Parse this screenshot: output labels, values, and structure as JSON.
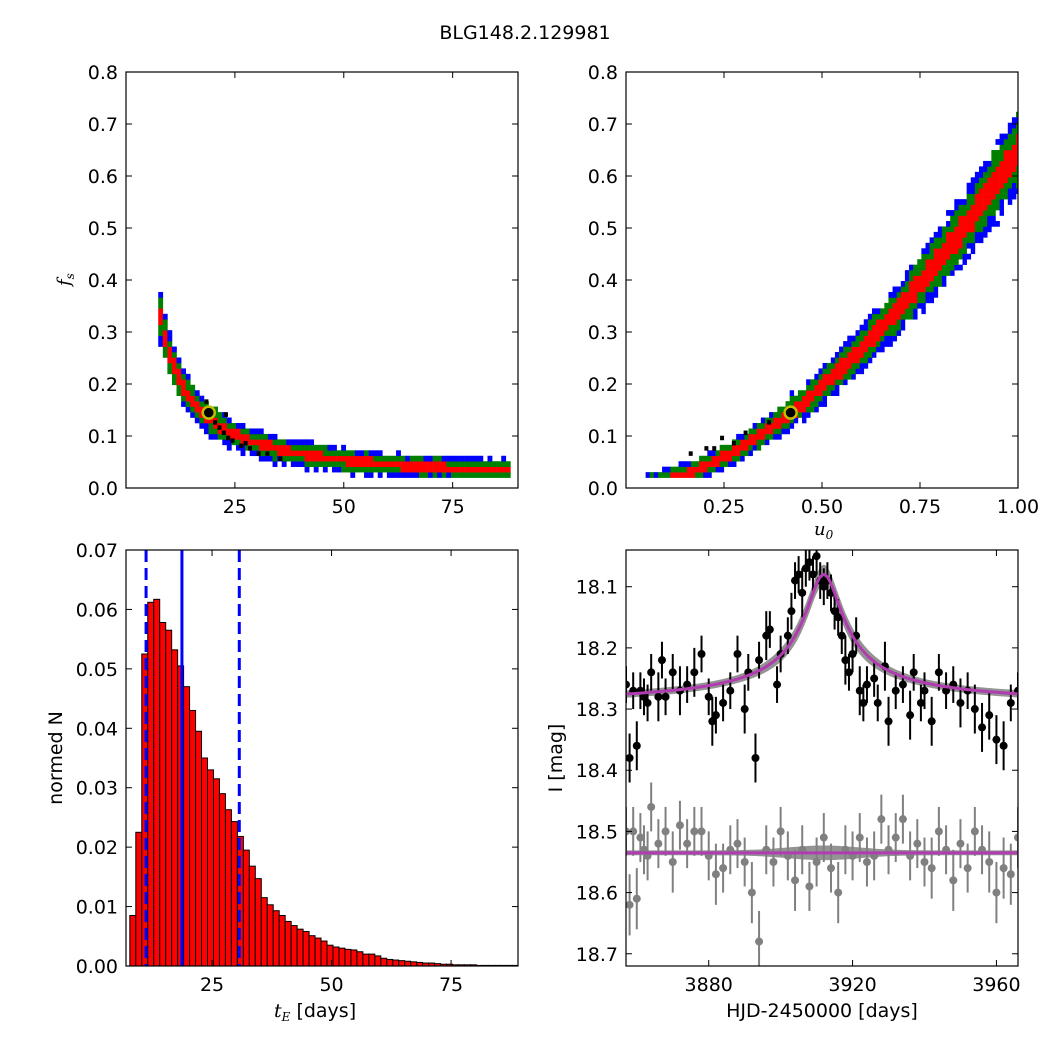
{
  "title": "BLG148.2.129981",
  "colors": {
    "blue": "#0000ff",
    "green": "#008000",
    "red": "#ff0000",
    "black": "#000000",
    "marker_edge": "#bfbf00",
    "gray": "#808080",
    "model": "#b03cb0"
  },
  "chart_data": [
    {
      "type": "heatmap",
      "panel": "top-left",
      "xlim": [
        0,
        90
      ],
      "ylim": [
        0,
        0.8
      ],
      "xticks": [
        25,
        50,
        75
      ],
      "yticks": [
        0.0,
        0.1,
        0.2,
        0.3,
        0.4,
        0.5,
        0.6,
        0.7,
        0.8
      ],
      "xlabel": "",
      "ylabel": "f_s",
      "ylabel_base": "f",
      "ylabel_sub": "s",
      "confidence_levels": [
        "black",
        "red",
        "green",
        "blue"
      ],
      "relation": "f_s ≈ 2.4 / t_E  (t_E from ~7.5 to ~87 days)",
      "best_fit": {
        "x": 19,
        "y": 0.145
      }
    },
    {
      "type": "heatmap",
      "panel": "top-right",
      "xlim": [
        0,
        1.0
      ],
      "ylim": [
        0,
        0.8
      ],
      "xticks": [
        0.25,
        0.5,
        0.75,
        1.0
      ],
      "xtick_labels": [
        "0.25",
        "0.50",
        "0.75",
        "1.00"
      ],
      "yticks": [
        0.0,
        0.1,
        0.2,
        0.3,
        0.4,
        0.5,
        0.6,
        0.7,
        0.8
      ],
      "xlabel": "u_0",
      "xlabel_base": "u",
      "xlabel_sub": "0",
      "ylabel": "",
      "relation": "f_s ≈ 0.65 · u_0^1.75  (u_0 from ~0.05 to 1.0)",
      "best_fit": {
        "x": 0.42,
        "y": 0.145
      }
    },
    {
      "type": "bar",
      "panel": "bottom-left",
      "xlim": [
        7,
        89
      ],
      "ylim": [
        0,
        0.07
      ],
      "xticks": [
        25,
        50,
        75
      ],
      "yticks": [
        0.0,
        0.01,
        0.02,
        0.03,
        0.04,
        0.05,
        0.06,
        0.07
      ],
      "ytick_labels": [
        "0.00",
        "0.01",
        "0.02",
        "0.03",
        "0.04",
        "0.05",
        "0.06",
        "0.07"
      ],
      "xlabel_base": "t",
      "xlabel_sub": "E",
      "xlabel_suffix": " [days]",
      "ylabel": "normed N",
      "bin_start": 7.8,
      "bin_width": 1.25,
      "values": [
        0.0085,
        0.0225,
        0.0525,
        0.0612,
        0.0617,
        0.0578,
        0.0565,
        0.0532,
        0.0505,
        0.047,
        0.043,
        0.0395,
        0.035,
        0.033,
        0.0315,
        0.029,
        0.0263,
        0.0243,
        0.0218,
        0.0195,
        0.0168,
        0.0147,
        0.0115,
        0.0103,
        0.0093,
        0.0085,
        0.0075,
        0.0068,
        0.0062,
        0.0058,
        0.0051,
        0.0047,
        0.0042,
        0.0035,
        0.0032,
        0.003,
        0.0028,
        0.0027,
        0.0024,
        0.002,
        0.002,
        0.0017,
        0.0013,
        0.0011,
        0.001,
        0.0009,
        0.0008,
        0.0007,
        0.0006,
        0.0005,
        0.0005,
        0.0004,
        0.0003,
        0.0003,
        0.0002,
        0.0002,
        0.0002,
        0.0002,
        0.0001,
        0.0001,
        0.0001,
        0.0001,
        0.0001,
        0.0001,
        0.0001
      ],
      "median": 18.7,
      "lower": 11.2,
      "upper": 30.7
    },
    {
      "type": "scatter",
      "panel": "bottom-right",
      "xlim": [
        3857,
        3966
      ],
      "ylim": [
        18.72,
        18.04
      ],
      "xticks": [
        3880,
        3920,
        3960
      ],
      "yticks": [
        18.1,
        18.2,
        18.3,
        18.4,
        18.5,
        18.6,
        18.7
      ],
      "xlabel": "HJD-2450000 [days]",
      "ylabel": "I [mag]",
      "series": [
        {
          "color": "black",
          "baseline": 18.295,
          "peak": 18.08,
          "t0": 3912,
          "x": [
            3857,
            3858,
            3859,
            3860,
            3861,
            3862,
            3863,
            3864,
            3866,
            3867,
            3868,
            3870,
            3872,
            3874,
            3876,
            3878,
            3880,
            3881,
            3882,
            3884,
            3886,
            3888,
            3890,
            3891,
            3893,
            3894,
            3896,
            3897,
            3899,
            3900,
            3902,
            3903,
            3904,
            3905,
            3906,
            3907,
            3908,
            3909,
            3910,
            3911,
            3912,
            3913,
            3914,
            3915,
            3916,
            3917,
            3918,
            3919,
            3920,
            3921,
            3922,
            3923,
            3924,
            3926,
            3927,
            3929,
            3930,
            3932,
            3934,
            3936,
            3937,
            3939,
            3940,
            3942,
            3944,
            3946,
            3948,
            3950,
            3952,
            3954,
            3956,
            3958,
            3960,
            3962,
            3964,
            3966
          ],
          "y": [
            18.26,
            18.38,
            18.27,
            18.36,
            18.27,
            18.28,
            18.29,
            18.24,
            18.28,
            18.22,
            18.28,
            18.24,
            18.27,
            18.26,
            18.24,
            18.21,
            18.28,
            18.32,
            18.31,
            18.29,
            18.27,
            18.21,
            18.3,
            18.24,
            18.38,
            18.22,
            18.18,
            18.17,
            18.26,
            18.21,
            18.18,
            18.14,
            18.09,
            18.08,
            18.11,
            18.07,
            18.06,
            18.08,
            18.05,
            18.09,
            18.1,
            18.09,
            18.11,
            18.14,
            18.15,
            18.18,
            18.22,
            18.24,
            18.21,
            18.18,
            18.27,
            18.29,
            18.26,
            18.25,
            18.29,
            18.23,
            18.32,
            18.27,
            18.26,
            18.31,
            18.24,
            18.29,
            18.27,
            18.32,
            18.24,
            18.27,
            18.26,
            18.29,
            18.27,
            18.3,
            18.33,
            18.31,
            18.35,
            18.36,
            18.29,
            18.27
          ],
          "err": [
            0.03,
            0.04,
            0.03,
            0.04,
            0.03,
            0.03,
            0.03,
            0.03,
            0.04,
            0.03,
            0.03,
            0.03,
            0.04,
            0.03,
            0.04,
            0.03,
            0.03,
            0.04,
            0.03,
            0.03,
            0.03,
            0.03,
            0.04,
            0.03,
            0.04,
            0.03,
            0.04,
            0.03,
            0.03,
            0.03,
            0.03,
            0.03,
            0.03,
            0.03,
            0.04,
            0.03,
            0.03,
            0.03,
            0.03,
            0.03,
            0.03,
            0.03,
            0.03,
            0.03,
            0.03,
            0.03,
            0.04,
            0.03,
            0.03,
            0.03,
            0.04,
            0.03,
            0.03,
            0.03,
            0.03,
            0.04,
            0.04,
            0.03,
            0.03,
            0.04,
            0.03,
            0.03,
            0.03,
            0.04,
            0.03,
            0.03,
            0.03,
            0.04,
            0.03,
            0.04,
            0.04,
            0.04,
            0.04,
            0.04,
            0.03,
            0.03
          ]
        },
        {
          "color": "gray",
          "baseline": 18.535,
          "x": [
            3857,
            3858,
            3859,
            3860,
            3861,
            3862,
            3863,
            3864,
            3866,
            3868,
            3870,
            3872,
            3874,
            3876,
            3878,
            3880,
            3882,
            3884,
            3886,
            3888,
            3890,
            3892,
            3894,
            3896,
            3898,
            3900,
            3902,
            3904,
            3906,
            3908,
            3910,
            3912,
            3914,
            3916,
            3918,
            3920,
            3922,
            3924,
            3926,
            3928,
            3930,
            3932,
            3934,
            3936,
            3938,
            3940,
            3942,
            3944,
            3946,
            3948,
            3950,
            3952,
            3954,
            3956,
            3958,
            3960,
            3962,
            3964,
            3966
          ],
          "y": [
            18.5,
            18.62,
            18.5,
            18.61,
            18.51,
            18.53,
            18.54,
            18.46,
            18.52,
            18.5,
            18.55,
            18.49,
            18.52,
            18.5,
            18.5,
            18.54,
            18.57,
            18.56,
            18.53,
            18.52,
            18.55,
            18.6,
            18.68,
            18.53,
            18.55,
            18.5,
            18.54,
            18.58,
            18.53,
            18.59,
            18.55,
            18.51,
            18.56,
            18.6,
            18.53,
            18.54,
            18.51,
            18.55,
            18.54,
            18.48,
            18.53,
            18.51,
            18.48,
            18.54,
            18.52,
            18.55,
            18.56,
            18.5,
            18.53,
            18.58,
            18.52,
            18.56,
            18.5,
            18.53,
            18.55,
            18.6,
            18.56,
            18.57,
            18.51
          ],
          "err": [
            0.04,
            0.05,
            0.04,
            0.05,
            0.04,
            0.04,
            0.04,
            0.04,
            0.04,
            0.04,
            0.05,
            0.04,
            0.04,
            0.04,
            0.04,
            0.04,
            0.05,
            0.04,
            0.04,
            0.04,
            0.04,
            0.05,
            0.05,
            0.04,
            0.04,
            0.04,
            0.04,
            0.05,
            0.04,
            0.04,
            0.04,
            0.04,
            0.04,
            0.05,
            0.04,
            0.04,
            0.04,
            0.04,
            0.04,
            0.04,
            0.04,
            0.04,
            0.04,
            0.04,
            0.04,
            0.04,
            0.05,
            0.04,
            0.04,
            0.05,
            0.04,
            0.04,
            0.04,
            0.04,
            0.05,
            0.05,
            0.05,
            0.05,
            0.05
          ]
        }
      ]
    }
  ]
}
